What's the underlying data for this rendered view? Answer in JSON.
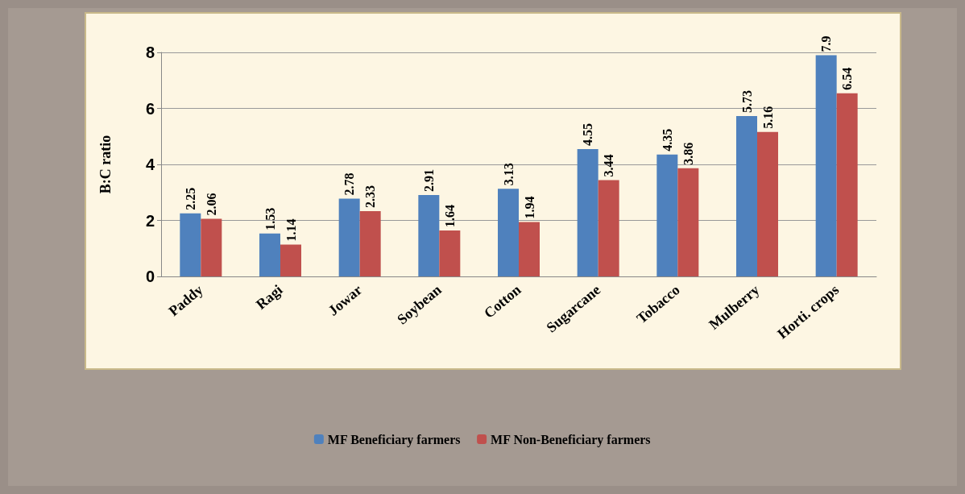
{
  "chart_data": {
    "type": "bar",
    "ylabel": "B:C ratio",
    "categories": [
      "Paddy",
      "Ragi",
      "Jowar",
      "Soybean",
      "Cotton",
      "Sugarcane",
      "Tobacco",
      "Mulberry",
      "Horti. crops"
    ],
    "series": [
      {
        "name": "MF Beneficiary farmers",
        "color": "#4f81bd",
        "values": [
          2.25,
          1.53,
          2.78,
          2.91,
          3.13,
          4.55,
          4.35,
          5.73,
          7.9
        ]
      },
      {
        "name": "MF Non-Beneficiary farmers",
        "color": "#c0504d",
        "values": [
          2.06,
          1.14,
          2.33,
          1.64,
          1.94,
          3.44,
          3.86,
          5.16,
          6.54
        ]
      }
    ],
    "ylim": [
      0,
      8
    ],
    "yticks": [
      0,
      2,
      4,
      6,
      8
    ],
    "grid": "y",
    "legend": "bottom",
    "data_labels": true
  }
}
